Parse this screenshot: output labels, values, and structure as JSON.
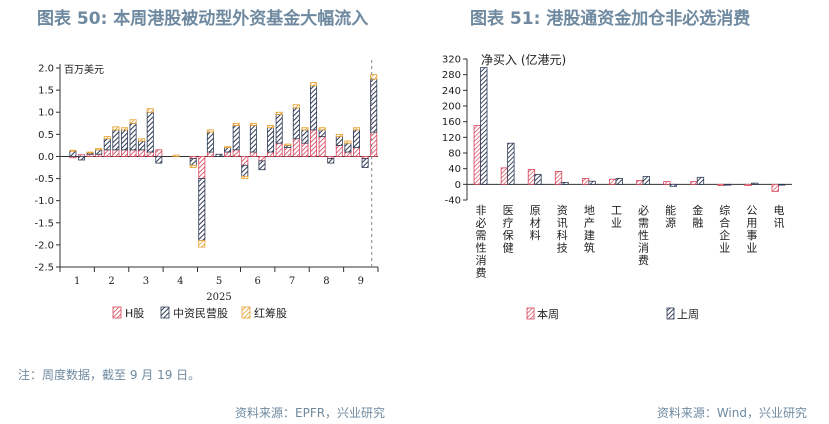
{
  "titles": {
    "left": "图表 50: 本周港股被动型外资基金大幅流入",
    "right": "图表 51: 港股通资金加仓非必选消费"
  },
  "note": "注：周度数据，截至 9 月 19 日。",
  "sources": {
    "left": "资料来源：EPFR，兴业研究",
    "right": "资料来源：Wind，兴业研究"
  },
  "colors": {
    "h_share": "#d6455a",
    "chinese_private": "#2e3a55",
    "red_chip": "#e8a030",
    "this_week": "#d6455a",
    "last_week": "#2e3a55",
    "title": "#6f8aa0"
  },
  "chart_data": [
    {
      "type": "bar",
      "stacked": true,
      "ylabel": "百万美元",
      "xlabel": "2025",
      "ylim": [
        -2.5,
        2.0
      ],
      "yticks": [
        "2.0",
        "1.5",
        "1.0",
        "0.5",
        "0.0",
        "-0.5",
        "-1.0",
        "-1.5",
        "-2.0",
        "-2.5"
      ],
      "month_labels": [
        "1",
        "2",
        "3",
        "4",
        "5",
        "6",
        "7",
        "8",
        "9"
      ],
      "month_week_counts": [
        4,
        4,
        4,
        4,
        5,
        4,
        4,
        4,
        4
      ],
      "latest_marker": "dashed-vertical-line",
      "legend": [
        "H股",
        "中资民营股",
        "红筹股"
      ],
      "legend_placement": "bottom",
      "series": [
        {
          "name": "H股",
          "values": [
            0.0,
            -0.03,
            0.04,
            0.05,
            0.05,
            0.15,
            0.15,
            0.15,
            0.15,
            0.15,
            0.1,
            0.15,
            0.0,
            0.0,
            0.0,
            -0.05,
            -0.5,
            0.1,
            0.0,
            0.1,
            0.15,
            -0.2,
            0.1,
            -0.1,
            0.1,
            0.3,
            0.2,
            0.4,
            0.3,
            0.6,
            0.45,
            -0.05,
            0.25,
            0.1,
            0.2,
            -0.05,
            0.55
          ]
        },
        {
          "name": "中资民营股",
          "values": [
            0.0,
            0.12,
            -0.08,
            0.03,
            0.1,
            0.25,
            0.45,
            0.45,
            0.6,
            0.2,
            0.9,
            -0.15,
            0.0,
            0.0,
            0.0,
            -0.15,
            -1.4,
            0.45,
            0.05,
            0.1,
            0.55,
            -0.25,
            0.6,
            -0.2,
            0.55,
            0.65,
            0.05,
            0.7,
            0.3,
            1.0,
            0.15,
            -0.1,
            0.2,
            0.2,
            0.4,
            -0.2,
            1.2
          ]
        },
        {
          "name": "红筹股",
          "values": [
            0.0,
            0.02,
            0.0,
            0.02,
            0.03,
            0.05,
            0.07,
            0.05,
            0.08,
            0.05,
            0.08,
            0.0,
            0.0,
            0.03,
            0.0,
            -0.05,
            -0.15,
            0.05,
            0.0,
            0.02,
            0.05,
            -0.05,
            0.05,
            0.0,
            0.05,
            0.05,
            0.03,
            0.07,
            0.05,
            0.07,
            0.05,
            0.0,
            0.05,
            0.05,
            0.05,
            0.0,
            0.1
          ]
        }
      ]
    },
    {
      "type": "bar",
      "ylabel": "净买入 (亿港元)",
      "ylim": [
        -40,
        320
      ],
      "yticks": [
        "320",
        "280",
        "240",
        "200",
        "160",
        "120",
        "80",
        "40",
        "0",
        "-40"
      ],
      "categories": [
        "非必需性消费",
        "医疗保健",
        "原材料",
        "资讯科技",
        "地产建筑",
        "工业",
        "必需性消费",
        "能源",
        "金融",
        "综合企业",
        "公用事业",
        "电讯"
      ],
      "legend_placement": "bottom",
      "series": [
        {
          "name": "本周",
          "values": [
            150,
            42,
            38,
            33,
            15,
            13,
            10,
            7,
            7,
            -3,
            -3,
            -18
          ]
        },
        {
          "name": "上周",
          "values": [
            298,
            105,
            25,
            5,
            8,
            15,
            20,
            -5,
            18,
            0,
            3,
            0
          ]
        }
      ]
    }
  ]
}
